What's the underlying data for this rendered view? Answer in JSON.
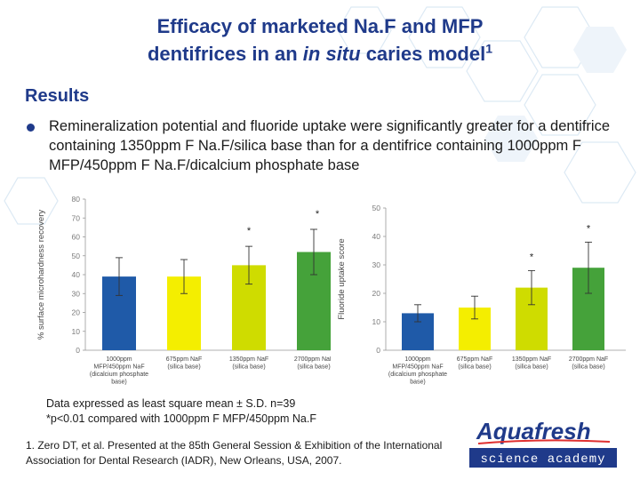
{
  "slide": {
    "title_line1": "Efficacy of marketed Na.F and MFP",
    "title_line2_part1": "dentifrices in an ",
    "title_line2_italic": "in situ",
    "title_line2_part2": " caries model",
    "title_superscript": "1",
    "section_heading": "Results",
    "bullet_text": "Remineralization potential and fluoride uptake were significantly greater for a dentifrice containing 1350ppm F Na.F/silica base than for a dentifrice containing 1000ppm F MFP/450ppm F Na.F/dicalcium phosphate base",
    "note_line1": "Data expressed as least square mean ± S.D. n=39",
    "note_line2": "*p<0.01 compared with 1000ppm F MFP/450ppm Na.F",
    "reference": "1. Zero DT, et al. Presented at the 85th General Session & Exhibition of the International Association for Dental Research (IADR), New Orleans, USA, 2007.",
    "logo_brand": "Aquafresh",
    "logo_tagline": "science academy"
  },
  "colors": {
    "title": "#1f3a8a",
    "blue_bar": "#1f5aa8",
    "yellow_bar": "#f4ee00",
    "lime_bar": "#cfdc00",
    "green_bar": "#45a23a",
    "axis_text": "#7a7a7a",
    "hex_bg": "#dce9f4"
  },
  "chart_data": [
    {
      "type": "bar",
      "ylabel": "% surface microhardness recovery",
      "ylim": [
        0,
        80
      ],
      "yticks": [
        0,
        10,
        20,
        30,
        40,
        50,
        60,
        70,
        80
      ],
      "grid": false,
      "categories": [
        [
          "1000ppm",
          "MFP/450ppm NaF",
          "(dicalcium phosphate",
          "base)"
        ],
        [
          "675ppm NaF",
          "(silica base)"
        ],
        [
          "1350ppm NaF",
          "(silica base)"
        ],
        [
          "2700ppm NaF",
          "(silica base)"
        ]
      ],
      "values": [
        39,
        39,
        45,
        52
      ],
      "errors": [
        10,
        9,
        10,
        12
      ],
      "significance": [
        "",
        "",
        "*",
        "*"
      ],
      "bar_colors": [
        "#1f5aa8",
        "#f4ee00",
        "#cfdc00",
        "#45a23a"
      ]
    },
    {
      "type": "bar",
      "ylabel": "Fluoride uptake score",
      "ylim": [
        0,
        50
      ],
      "yticks": [
        0,
        10,
        20,
        30,
        40,
        50
      ],
      "grid": false,
      "categories": [
        [
          "1000ppm",
          "MFP/450ppm NaF",
          "(dicalcium phosphate",
          "base)"
        ],
        [
          "675ppm NaF",
          "(silica base)"
        ],
        [
          "1350ppm NaF",
          "(silica base)"
        ],
        [
          "2700ppm NaF",
          "(silica base)"
        ]
      ],
      "values": [
        13,
        15,
        22,
        29
      ],
      "errors": [
        3,
        4,
        6,
        9
      ],
      "significance": [
        "",
        "",
        "*",
        "*"
      ],
      "bar_colors": [
        "#1f5aa8",
        "#f4ee00",
        "#cfdc00",
        "#45a23a"
      ]
    }
  ]
}
